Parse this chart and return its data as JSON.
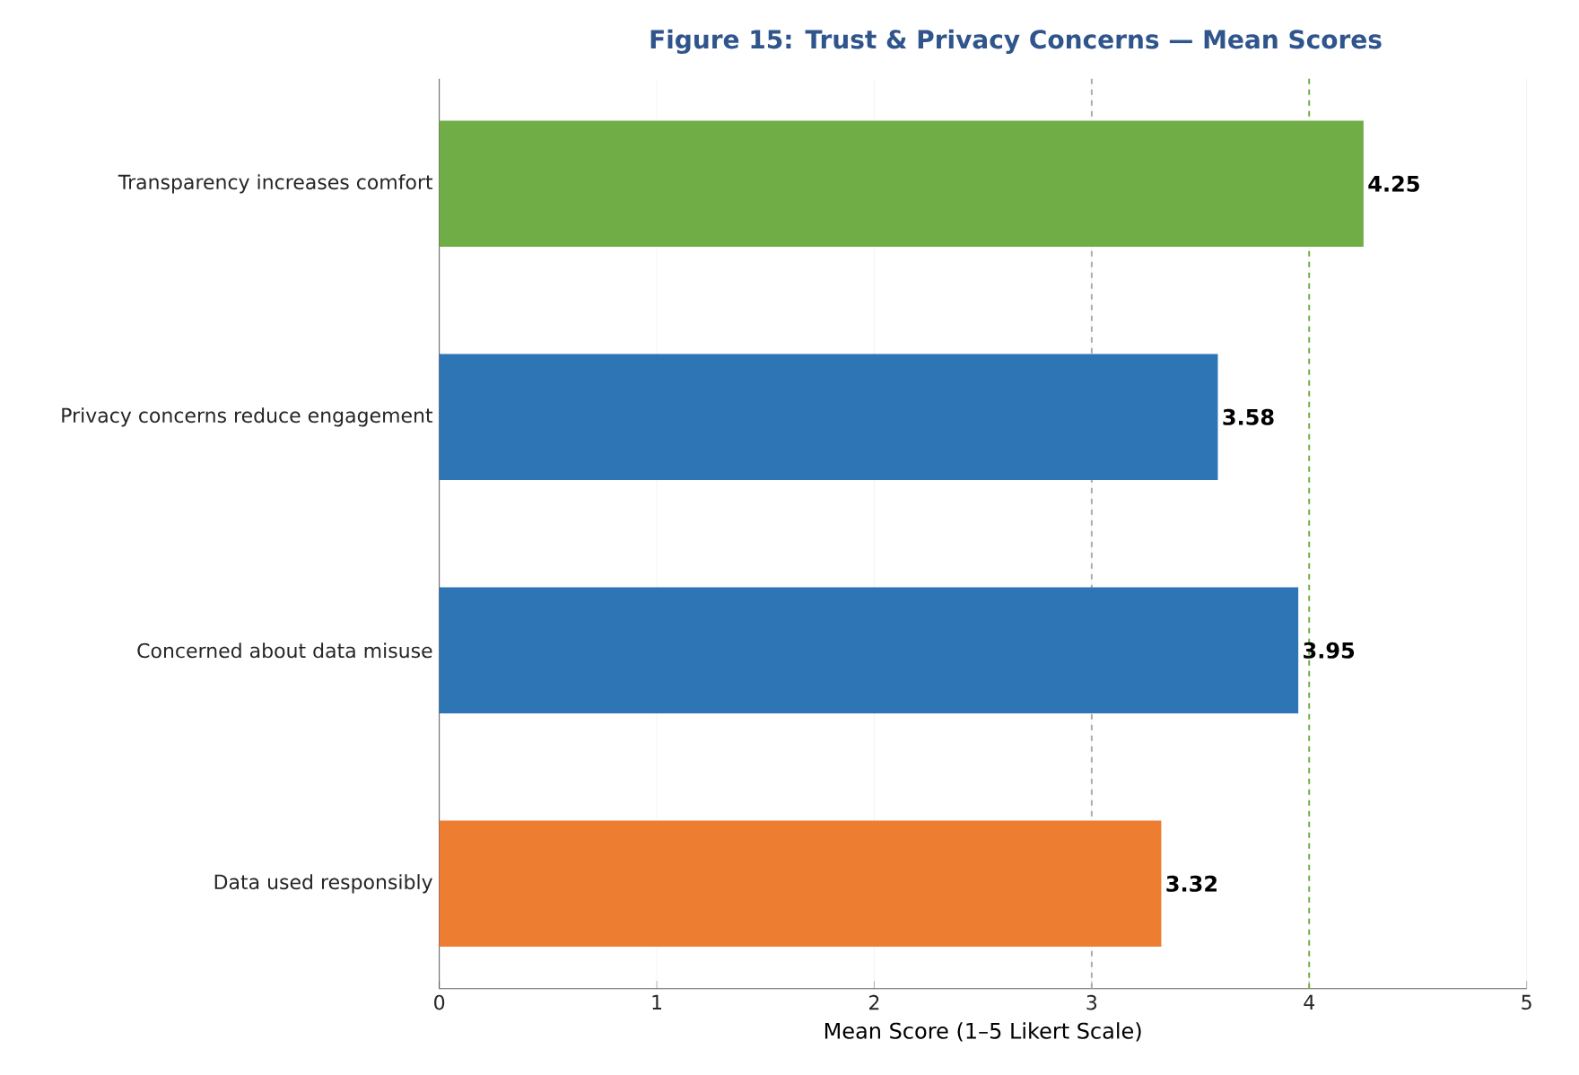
{
  "chart_data": {
    "type": "bar",
    "orientation": "horizontal",
    "title": "Figure 15: Trust & Privacy Concerns — Mean Scores",
    "xlabel": "Mean Score (1–5 Likert Scale)",
    "categories": [
      "Transparency increases comfort",
      "Privacy concerns reduce engagement",
      "Concerned about data misuse",
      "Data used responsibly"
    ],
    "values": [
      4.25,
      3.58,
      3.95,
      3.32
    ],
    "colors": [
      "#70ad47",
      "#2e75b6",
      "#2e75b6",
      "#ed7d31"
    ],
    "xlim": [
      0,
      5
    ],
    "xticks": [
      0,
      1,
      2,
      3,
      4,
      5
    ],
    "grid": "x",
    "data_labels": true,
    "ref_lines": [
      {
        "axis": "x",
        "value": 3,
        "color": "#aaaaaa",
        "line_style": "dashed"
      },
      {
        "axis": "x",
        "value": 4,
        "color": "#70ad47",
        "line_style": "dashed"
      }
    ]
  }
}
